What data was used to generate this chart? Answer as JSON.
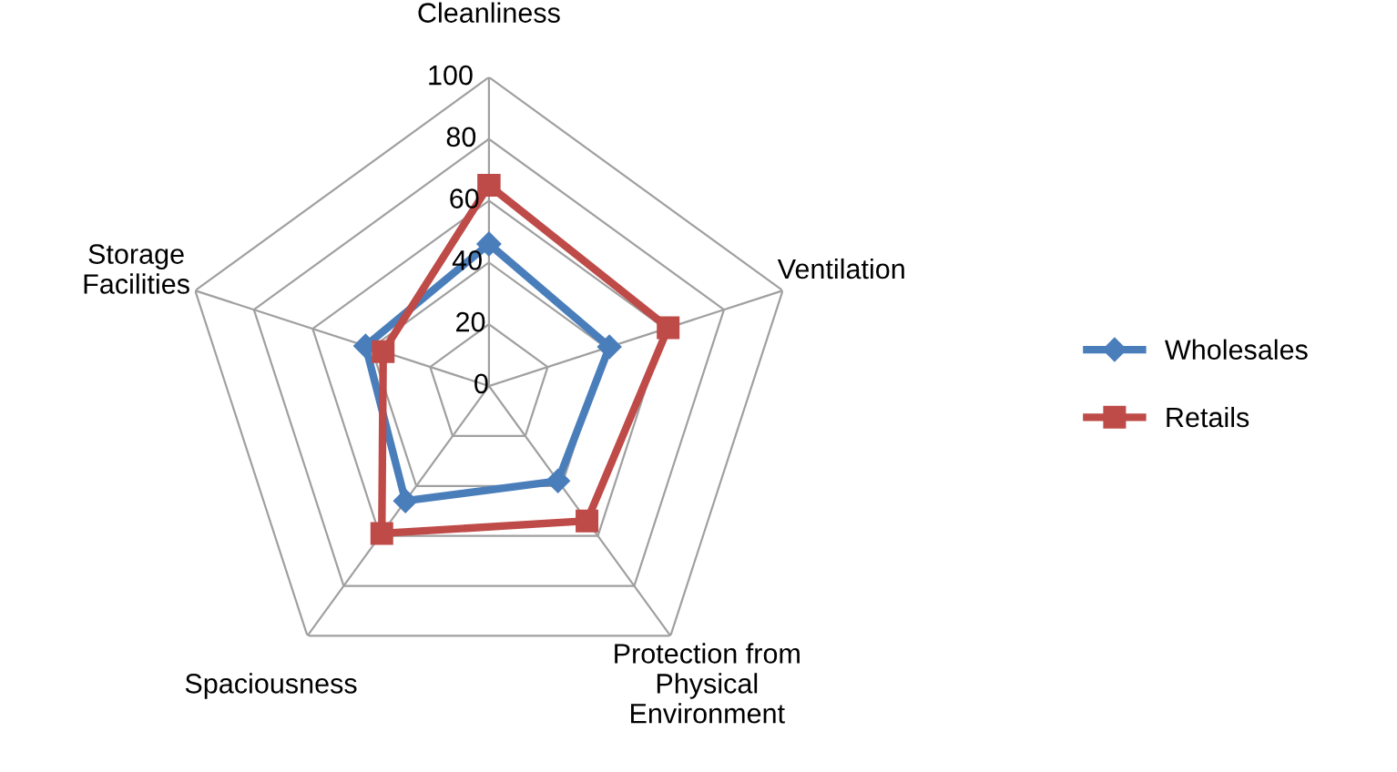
{
  "chart_data": {
    "type": "radar",
    "categories": [
      "Cleanliness",
      "Ventilation",
      "Protection from\nPhysical\nEnvironment",
      "Spaciousness",
      "Storage\nFacilities"
    ],
    "series": [
      {
        "name": "Wholesales",
        "color": "#4a7ebb",
        "marker": "diamond",
        "values": [
          46,
          41,
          38,
          46,
          42
        ]
      },
      {
        "name": "Retails",
        "color": "#be4b48",
        "marker": "square",
        "values": [
          65,
          61,
          54,
          59,
          36
        ]
      }
    ],
    "ylim": [
      0,
      100
    ],
    "yticks": [
      0,
      20,
      40,
      60,
      80,
      100
    ],
    "grid": true,
    "legend": "right"
  }
}
